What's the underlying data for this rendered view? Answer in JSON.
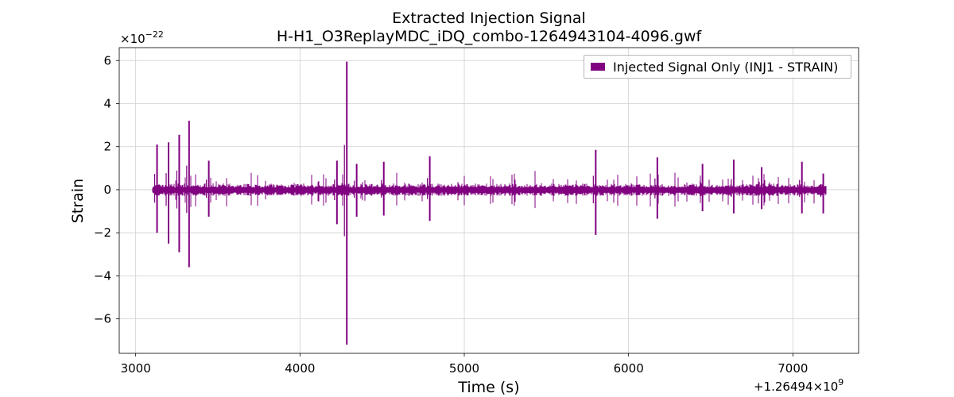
{
  "chart_data": {
    "type": "line",
    "title": "Extracted Injection Signal",
    "subtitle": "H-H1_O3ReplayMDC_iDQ_combo-1264943104-4096.gwf",
    "xlabel": "Time (s)",
    "ylabel": "Strain",
    "x_offset_label": "+1.26494×10",
    "x_offset_exp": "9",
    "y_scale_label": "×10",
    "y_scale_exp": "−22",
    "xlim": [
      2900,
      7400
    ],
    "ylim": [
      -7.6,
      6.6
    ],
    "x_ticks": [
      3000,
      4000,
      5000,
      6000,
      7000
    ],
    "x_tick_labels": [
      "3000",
      "4000",
      "5000",
      "6000",
      "7000"
    ],
    "y_ticks": [
      -6,
      -4,
      -2,
      0,
      2,
      4,
      6
    ],
    "y_tick_labels": [
      "−6",
      "−4",
      "−2",
      "0",
      "2",
      "4",
      "6"
    ],
    "grid": true,
    "legend_position": "top-right",
    "color": "#800080",
    "series": [
      {
        "name": "Injected Signal Only (INJ1 - STRAIN)",
        "x_range": [
          3104,
          7200
        ],
        "baseline_amplitude": 0.18,
        "spikes": [
          {
            "x": 3130,
            "max": 2.1,
            "min": -2.0
          },
          {
            "x": 3200,
            "max": 2.2,
            "min": -2.5
          },
          {
            "x": 3265,
            "max": 2.55,
            "min": -2.9
          },
          {
            "x": 3325,
            "max": 3.2,
            "min": -3.6
          },
          {
            "x": 3445,
            "max": 1.35,
            "min": -1.25
          },
          {
            "x": 4225,
            "max": 1.35,
            "min": -1.6
          },
          {
            "x": 4285,
            "max": 5.95,
            "min": -7.2
          },
          {
            "x": 4345,
            "max": 1.2,
            "min": -1.25
          },
          {
            "x": 4510,
            "max": 1.3,
            "min": -1.2
          },
          {
            "x": 4790,
            "max": 1.55,
            "min": -1.45
          },
          {
            "x": 5800,
            "max": 1.85,
            "min": -2.1
          },
          {
            "x": 6175,
            "max": 1.5,
            "min": -1.35
          },
          {
            "x": 6450,
            "max": 1.2,
            "min": -1.0
          },
          {
            "x": 6640,
            "max": 1.4,
            "min": -1.1
          },
          {
            "x": 6810,
            "max": 1.05,
            "min": -0.9
          },
          {
            "x": 7055,
            "max": 1.3,
            "min": -1.1
          },
          {
            "x": 7185,
            "max": 0.75,
            "min": -1.1
          }
        ]
      }
    ]
  }
}
